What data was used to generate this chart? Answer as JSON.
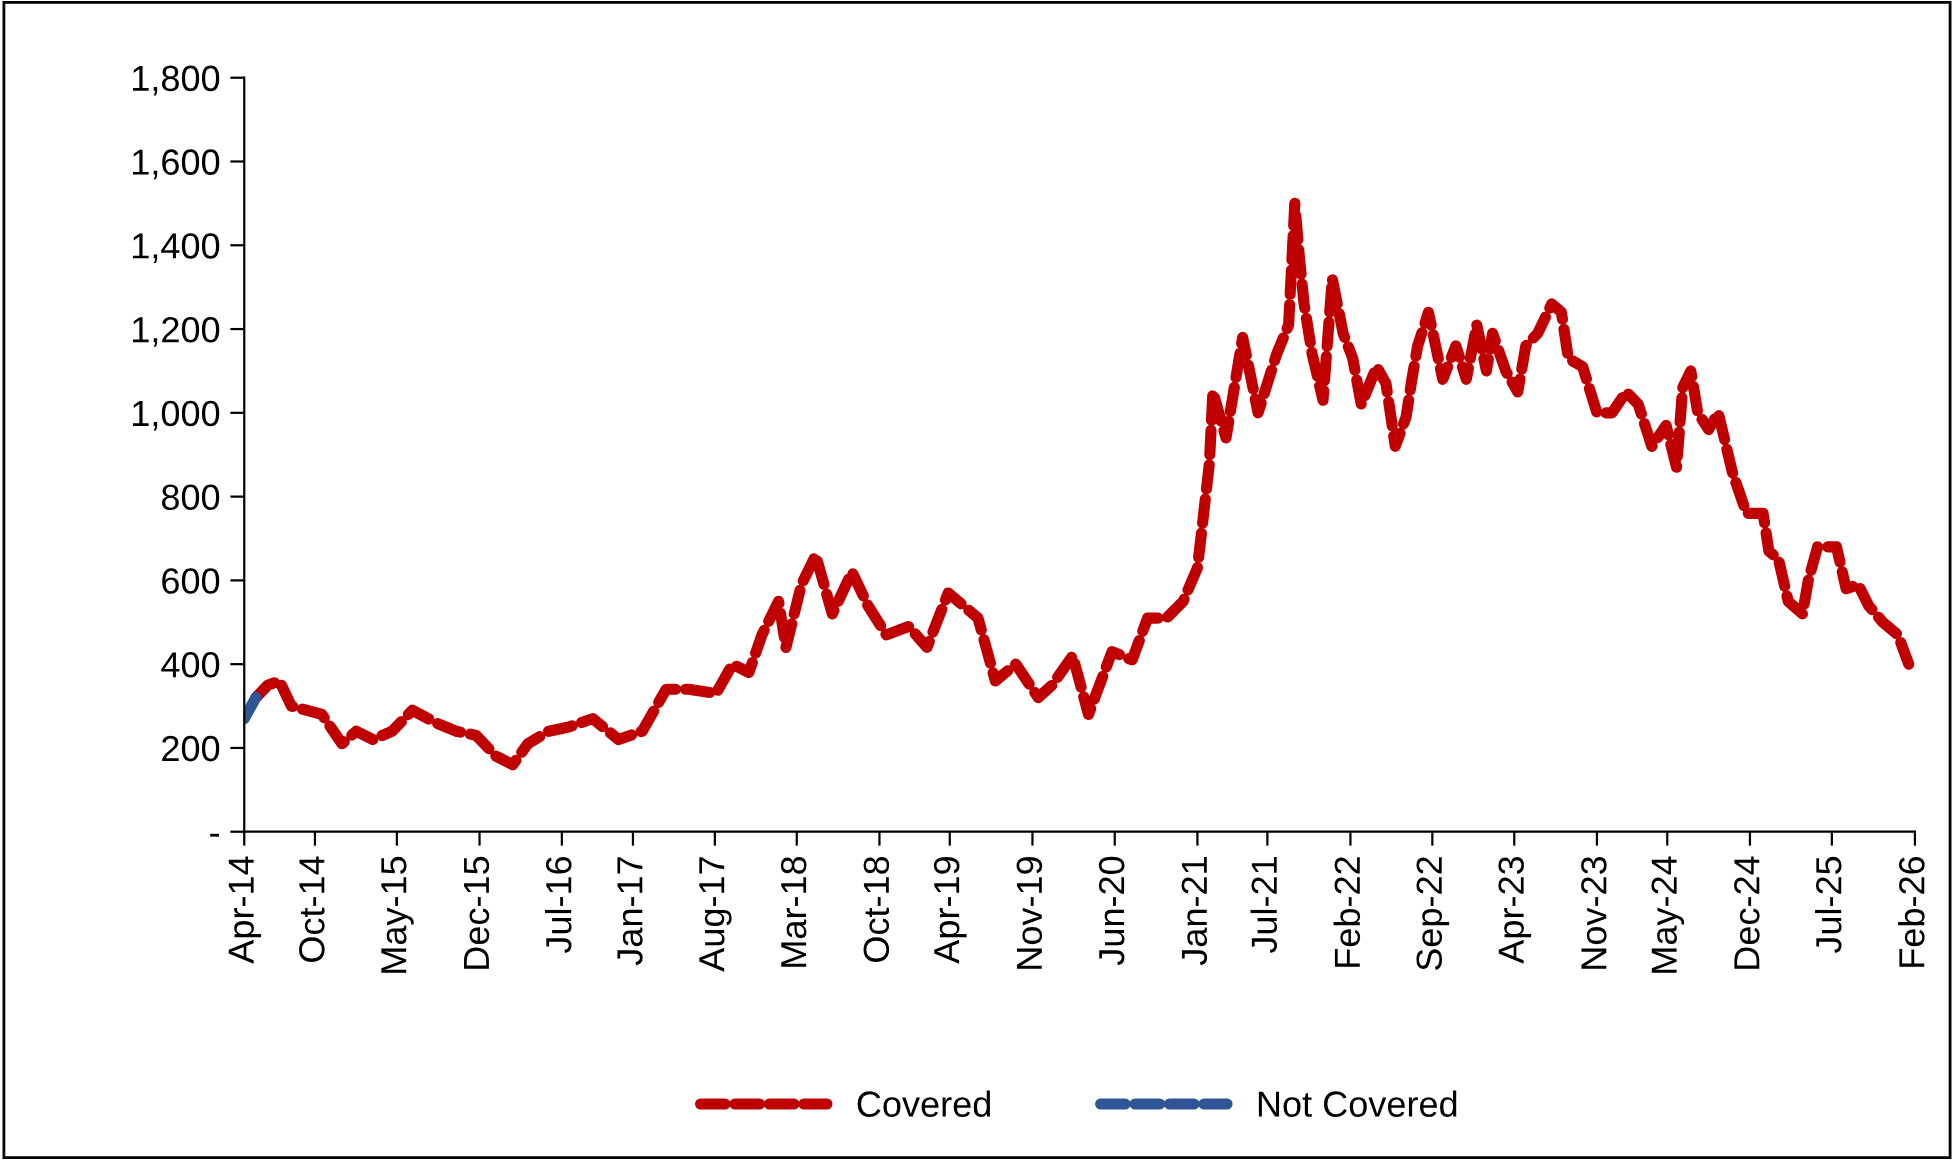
{
  "chart_data": {
    "type": "line",
    "legend": "bottom",
    "line_style": "dashed",
    "marker": "none",
    "grid": false,
    "xlim": [
      "2014-04-01",
      "2026-02-01"
    ],
    "xticks": [
      {
        "value": "2014-04-01",
        "label": "Apr-14"
      },
      {
        "value": "2014-10-01",
        "label": "Oct-14"
      },
      {
        "value": "2015-05-01",
        "label": "May-15"
      },
      {
        "value": "2015-12-01",
        "label": "Dec-15"
      },
      {
        "value": "2016-07-01",
        "label": "Jul-16"
      },
      {
        "value": "2017-01-01",
        "label": "Jan-17"
      },
      {
        "value": "2017-08-01",
        "label": "Aug-17"
      },
      {
        "value": "2018-03-01",
        "label": "Mar-18"
      },
      {
        "value": "2018-10-01",
        "label": "Oct-18"
      },
      {
        "value": "2019-04-01",
        "label": "Apr-19"
      },
      {
        "value": "2019-11-01",
        "label": "Nov-19"
      },
      {
        "value": "2020-06-01",
        "label": "Jun-20"
      },
      {
        "value": "2021-01-01",
        "label": "Jan-21"
      },
      {
        "value": "2021-07-01",
        "label": "Jul-21"
      },
      {
        "value": "2022-02-01",
        "label": "Feb-22"
      },
      {
        "value": "2022-09-01",
        "label": "Sep-22"
      },
      {
        "value": "2023-04-01",
        "label": "Apr-23"
      },
      {
        "value": "2023-11-01",
        "label": "Nov-23"
      },
      {
        "value": "2024-05-01",
        "label": "May-24"
      },
      {
        "value": "2024-12-01",
        "label": "Dec-24"
      },
      {
        "value": "2025-07-01",
        "label": "Jul-25"
      },
      {
        "value": "2026-02-01",
        "label": "Feb-26"
      }
    ],
    "ylim": [
      0,
      1800
    ],
    "yticks": [
      {
        "value": 0,
        "label": "-"
      },
      200,
      400,
      600,
      800,
      {
        "value": 1000,
        "label": "1,000"
      },
      {
        "value": 1200,
        "label": "1,200"
      },
      {
        "value": 1400,
        "label": "1,400"
      },
      {
        "value": 1600,
        "label": "1,600"
      },
      {
        "value": 1800,
        "label": "1,800"
      }
    ],
    "series": [
      {
        "name": "Covered",
        "color": "#c00000",
        "x": [
          "2014-05-01",
          "2014-06-01",
          "2014-07-01",
          "2014-08-01",
          "2014-10-19",
          "2014-12-10",
          "2015-01-16",
          "2015-02-28",
          "2015-04-19",
          "2015-06-10",
          "2015-08-10",
          "2015-10-01",
          "2015-11-22",
          "2016-01-13",
          "2016-02-25",
          "2016-04-04",
          "2016-05-28",
          "2016-07-19",
          "2016-09-19",
          "2016-11-25",
          "2017-01-25",
          "2017-03-28",
          "2017-05-25",
          "2017-08-04",
          "2017-09-16",
          "2017-10-28",
          "2017-12-01",
          "2018-01-13",
          "2018-02-01",
          "2018-03-13",
          "2018-04-19",
          "2018-06-01",
          "2018-07-22",
          "2018-09-01",
          "2018-10-19",
          "2018-12-16",
          "2019-02-01",
          "2019-03-28",
          "2019-06-13",
          "2019-07-28",
          "2019-09-19",
          "2019-11-16",
          "2019-12-22",
          "2020-02-13",
          "2020-03-25",
          "2020-05-25",
          "2020-07-16",
          "2020-08-25",
          "2020-10-13",
          "2020-11-25",
          "2021-01-01",
          "2021-01-16",
          "2021-02-01",
          "2021-02-10",
          "2021-03-16",
          "2021-04-01",
          "2021-04-28",
          "2021-06-07",
          "2021-07-25",
          "2021-08-25",
          "2021-09-10",
          "2021-09-22",
          "2021-10-04",
          "2021-10-25",
          "2021-11-22",
          "2021-12-16",
          "2022-01-13",
          "2022-02-07",
          "2022-03-01",
          "2022-04-10",
          "2022-05-04",
          "2022-05-28",
          "2022-06-25",
          "2022-07-10",
          "2022-07-25",
          "2022-08-22",
          "2022-09-28",
          "2022-11-01",
          "2022-11-28",
          "2022-12-25",
          "2023-01-19",
          "2023-02-04",
          "2023-03-10",
          "2023-04-10",
          "2023-05-01",
          "2023-06-01",
          "2023-07-07",
          "2023-08-01",
          "2023-08-19",
          "2023-09-25",
          "2023-11-01",
          "2023-12-10",
          "2024-01-16",
          "2024-02-16",
          "2024-03-22",
          "2024-04-28",
          "2024-05-25",
          "2024-06-10",
          "2024-07-01",
          "2024-07-19",
          "2024-08-16",
          "2024-09-10",
          "2024-10-16",
          "2024-11-22",
          "2025-01-04",
          "2025-01-19",
          "2025-02-13",
          "2025-03-10",
          "2025-04-16",
          "2025-05-01",
          "2025-05-25",
          "2025-07-13",
          "2025-08-07",
          "2025-09-07",
          "2025-10-04",
          "2025-11-10",
          "2025-12-19",
          "2026-01-16"
        ],
        "values": [
          320,
          350,
          360,
          300,
          280,
          210,
          240,
          220,
          240,
          290,
          260,
          240,
          230,
          180,
          160,
          210,
          240,
          250,
          270,
          220,
          240,
          340,
          340,
          330,
          400,
          380,
          470,
          550,
          440,
          590,
          660,
          520,
          620,
          540,
          470,
          490,
          440,
          570,
          510,
          360,
          400,
          320,
          350,
          420,
          280,
          430,
          410,
          510,
          510,
          550,
          630,
          750,
          880,
          1050,
          940,
          1030,
          1180,
          1000,
          1140,
          1210,
          1500,
          1370,
          1260,
          1140,
          1030,
          1320,
          1190,
          1130,
          1020,
          1110,
          1070,
          920,
          990,
          1080,
          1160,
          1240,
          1080,
          1160,
          1080,
          1210,
          1100,
          1190,
          1100,
          1050,
          1160,
          1190,
          1260,
          1240,
          1130,
          1110,
          1000,
          1000,
          1050,
          1020,
          920,
          970,
          870,
          1060,
          1100,
          1000,
          960,
          1000,
          860,
          760,
          760,
          670,
          650,
          550,
          520,
          600,
          680,
          680,
          580,
          590,
          540,
          500,
          470,
          400
        ]
      },
      {
        "name": "Not Covered",
        "color": "#2f5597",
        "x": [
          "2014-04-01",
          "2014-05-01"
        ],
        "values": [
          270,
          320
        ]
      }
    ]
  }
}
